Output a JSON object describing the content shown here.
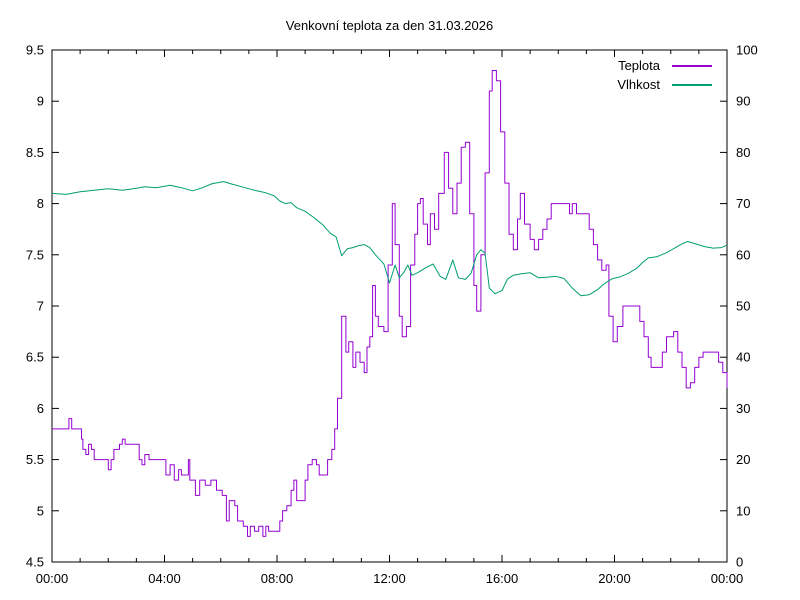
{
  "chart_data": {
    "type": "line",
    "title": "Venkovní teplota za den 31.03.2026",
    "grid": false,
    "x_axis": {
      "range_hours": [
        0,
        24
      ],
      "major_every_hours": 4,
      "minor_every_hours": 1,
      "tick_labels": [
        "00:00",
        "04:00",
        "08:00",
        "12:00",
        "16:00",
        "20:00",
        "00:00"
      ]
    },
    "y_left_axis": {
      "range": [
        4.5,
        9.5
      ],
      "tick_step": 0.5,
      "tick_labels": [
        "4.5",
        "5",
        "5.5",
        "6",
        "6.5",
        "7",
        "7.5",
        "8",
        "8.5",
        "9",
        "9.5"
      ]
    },
    "y_right_axis": {
      "range": [
        0,
        100
      ],
      "tick_step": 10,
      "tick_labels": [
        "0",
        "10",
        "20",
        "30",
        "40",
        "50",
        "60",
        "70",
        "80",
        "90",
        "100"
      ]
    },
    "legend": {
      "position": "top-right",
      "entries": [
        {
          "label": "Teplota",
          "color": "#9400d3"
        },
        {
          "label": "Vlhkost",
          "color": "#009e73"
        }
      ]
    },
    "series": [
      {
        "name": "Teplota",
        "axis": "left",
        "unit": "°C",
        "color": "#9400d3",
        "style": "steps",
        "points": [
          [
            0.0,
            5.8
          ],
          [
            0.55,
            5.8
          ],
          [
            0.6,
            5.9
          ],
          [
            0.7,
            5.8
          ],
          [
            1.0,
            5.8
          ],
          [
            1.05,
            5.7
          ],
          [
            1.1,
            5.6
          ],
          [
            1.2,
            5.55
          ],
          [
            1.3,
            5.65
          ],
          [
            1.4,
            5.6
          ],
          [
            1.5,
            5.5
          ],
          [
            1.9,
            5.5
          ],
          [
            2.0,
            5.4
          ],
          [
            2.1,
            5.5
          ],
          [
            2.2,
            5.6
          ],
          [
            2.4,
            5.65
          ],
          [
            2.5,
            5.7
          ],
          [
            2.6,
            5.65
          ],
          [
            3.0,
            5.65
          ],
          [
            3.1,
            5.5
          ],
          [
            3.2,
            5.45
          ],
          [
            3.3,
            5.55
          ],
          [
            3.45,
            5.5
          ],
          [
            3.95,
            5.5
          ],
          [
            4.05,
            5.35
          ],
          [
            4.2,
            5.45
          ],
          [
            4.35,
            5.3
          ],
          [
            4.5,
            5.4
          ],
          [
            4.6,
            5.35
          ],
          [
            4.8,
            5.35
          ],
          [
            4.85,
            5.5
          ],
          [
            4.9,
            5.3
          ],
          [
            5.1,
            5.15
          ],
          [
            5.25,
            5.3
          ],
          [
            5.45,
            5.25
          ],
          [
            5.65,
            5.3
          ],
          [
            5.85,
            5.2
          ],
          [
            6.05,
            5.15
          ],
          [
            6.2,
            4.9
          ],
          [
            6.3,
            5.1
          ],
          [
            6.5,
            5.05
          ],
          [
            6.6,
            4.9
          ],
          [
            6.8,
            4.85
          ],
          [
            6.95,
            4.75
          ],
          [
            7.05,
            4.85
          ],
          [
            7.2,
            4.8
          ],
          [
            7.35,
            4.85
          ],
          [
            7.5,
            4.75
          ],
          [
            7.6,
            4.85
          ],
          [
            7.7,
            4.8
          ],
          [
            8.0,
            4.8
          ],
          [
            8.1,
            4.9
          ],
          [
            8.2,
            5.0
          ],
          [
            8.35,
            5.05
          ],
          [
            8.5,
            5.2
          ],
          [
            8.6,
            5.3
          ],
          [
            8.7,
            5.1
          ],
          [
            8.9,
            5.1
          ],
          [
            9.0,
            5.3
          ],
          [
            9.1,
            5.45
          ],
          [
            9.25,
            5.5
          ],
          [
            9.4,
            5.45
          ],
          [
            9.5,
            5.35
          ],
          [
            9.7,
            5.35
          ],
          [
            9.8,
            5.5
          ],
          [
            9.95,
            5.6
          ],
          [
            10.05,
            5.8
          ],
          [
            10.15,
            6.1
          ],
          [
            10.3,
            6.9
          ],
          [
            10.45,
            6.55
          ],
          [
            10.55,
            6.65
          ],
          [
            10.7,
            6.4
          ],
          [
            10.8,
            6.55
          ],
          [
            10.95,
            6.45
          ],
          [
            11.1,
            6.35
          ],
          [
            11.2,
            6.6
          ],
          [
            11.3,
            6.7
          ],
          [
            11.4,
            7.2
          ],
          [
            11.5,
            6.9
          ],
          [
            11.6,
            6.8
          ],
          [
            11.8,
            6.75
          ],
          [
            11.95,
            7.4
          ],
          [
            12.1,
            8.0
          ],
          [
            12.2,
            7.6
          ],
          [
            12.35,
            6.9
          ],
          [
            12.45,
            6.7
          ],
          [
            12.6,
            6.8
          ],
          [
            12.75,
            7.4
          ],
          [
            12.9,
            7.7
          ],
          [
            13.0,
            8.0
          ],
          [
            13.1,
            8.05
          ],
          [
            13.2,
            7.8
          ],
          [
            13.35,
            7.6
          ],
          [
            13.45,
            7.9
          ],
          [
            13.6,
            7.75
          ],
          [
            13.75,
            8.1
          ],
          [
            13.95,
            8.5
          ],
          [
            14.1,
            8.15
          ],
          [
            14.25,
            7.9
          ],
          [
            14.4,
            8.2
          ],
          [
            14.55,
            8.55
          ],
          [
            14.7,
            8.6
          ],
          [
            14.85,
            7.9
          ],
          [
            15.0,
            7.2
          ],
          [
            15.1,
            6.95
          ],
          [
            15.25,
            7.5
          ],
          [
            15.4,
            8.3
          ],
          [
            15.55,
            9.1
          ],
          [
            15.65,
            9.3
          ],
          [
            15.8,
            9.2
          ],
          [
            15.95,
            8.7
          ],
          [
            16.1,
            8.2
          ],
          [
            16.25,
            7.7
          ],
          [
            16.4,
            7.55
          ],
          [
            16.55,
            7.85
          ],
          [
            16.65,
            8.1
          ],
          [
            16.8,
            7.8
          ],
          [
            17.0,
            7.65
          ],
          [
            17.15,
            7.55
          ],
          [
            17.3,
            7.65
          ],
          [
            17.45,
            7.75
          ],
          [
            17.6,
            7.85
          ],
          [
            17.75,
            8.0
          ],
          [
            18.3,
            8.0
          ],
          [
            18.4,
            7.9
          ],
          [
            18.5,
            8.0
          ],
          [
            18.65,
            7.9
          ],
          [
            19.0,
            7.9
          ],
          [
            19.1,
            7.75
          ],
          [
            19.25,
            7.6
          ],
          [
            19.4,
            7.45
          ],
          [
            19.55,
            7.35
          ],
          [
            19.7,
            7.4
          ],
          [
            19.8,
            6.9
          ],
          [
            19.95,
            6.65
          ],
          [
            20.1,
            6.8
          ],
          [
            20.3,
            7.0
          ],
          [
            20.75,
            7.0
          ],
          [
            20.9,
            6.85
          ],
          [
            21.05,
            6.7
          ],
          [
            21.2,
            6.5
          ],
          [
            21.3,
            6.4
          ],
          [
            21.55,
            6.4
          ],
          [
            21.7,
            6.55
          ],
          [
            21.85,
            6.7
          ],
          [
            22.1,
            6.75
          ],
          [
            22.25,
            6.55
          ],
          [
            22.4,
            6.4
          ],
          [
            22.55,
            6.2
          ],
          [
            22.7,
            6.25
          ],
          [
            22.85,
            6.4
          ],
          [
            23.0,
            6.5
          ],
          [
            23.15,
            6.55
          ],
          [
            23.55,
            6.55
          ],
          [
            23.7,
            6.45
          ],
          [
            23.85,
            6.35
          ],
          [
            24.0,
            6.2
          ]
        ]
      },
      {
        "name": "Vlhkost",
        "axis": "right",
        "unit": "%",
        "color": "#009e73",
        "style": "line",
        "points": [
          [
            0.0,
            72.0
          ],
          [
            0.5,
            71.8
          ],
          [
            1.0,
            72.3
          ],
          [
            1.5,
            72.6
          ],
          [
            2.0,
            72.9
          ],
          [
            2.5,
            72.6
          ],
          [
            3.0,
            73.0
          ],
          [
            3.3,
            73.3
          ],
          [
            3.7,
            73.1
          ],
          [
            4.2,
            73.6
          ],
          [
            4.6,
            73.1
          ],
          [
            5.0,
            72.5
          ],
          [
            5.3,
            73.0
          ],
          [
            5.7,
            73.9
          ],
          [
            6.1,
            74.3
          ],
          [
            6.4,
            73.8
          ],
          [
            6.8,
            73.2
          ],
          [
            7.2,
            72.6
          ],
          [
            7.6,
            72.1
          ],
          [
            7.9,
            71.5
          ],
          [
            8.1,
            70.5
          ],
          [
            8.3,
            70.0
          ],
          [
            8.5,
            70.2
          ],
          [
            8.7,
            69.2
          ],
          [
            9.0,
            68.5
          ],
          [
            9.3,
            67.3
          ],
          [
            9.6,
            66.0
          ],
          [
            9.9,
            64.2
          ],
          [
            10.1,
            63.5
          ],
          [
            10.3,
            59.8
          ],
          [
            10.5,
            61.2
          ],
          [
            10.7,
            61.4
          ],
          [
            10.9,
            61.8
          ],
          [
            11.1,
            62.0
          ],
          [
            11.3,
            61.4
          ],
          [
            11.5,
            60.0
          ],
          [
            11.8,
            58.2
          ],
          [
            12.0,
            54.5
          ],
          [
            12.2,
            58.0
          ],
          [
            12.35,
            55.5
          ],
          [
            12.5,
            56.5
          ],
          [
            12.65,
            58.0
          ],
          [
            12.8,
            56.0
          ],
          [
            13.0,
            56.5
          ],
          [
            13.3,
            57.5
          ],
          [
            13.55,
            58.2
          ],
          [
            13.8,
            55.8
          ],
          [
            14.0,
            55.2
          ],
          [
            14.25,
            59.0
          ],
          [
            14.45,
            55.5
          ],
          [
            14.7,
            55.2
          ],
          [
            14.9,
            56.4
          ],
          [
            15.1,
            60.0
          ],
          [
            15.25,
            61.0
          ],
          [
            15.4,
            60.3
          ],
          [
            15.55,
            53.5
          ],
          [
            15.75,
            52.4
          ],
          [
            16.0,
            53.0
          ],
          [
            16.2,
            55.3
          ],
          [
            16.4,
            56.0
          ],
          [
            16.7,
            56.3
          ],
          [
            17.0,
            56.5
          ],
          [
            17.3,
            55.5
          ],
          [
            17.6,
            55.6
          ],
          [
            17.9,
            55.8
          ],
          [
            18.2,
            55.4
          ],
          [
            18.5,
            53.5
          ],
          [
            18.8,
            52.0
          ],
          [
            19.1,
            52.2
          ],
          [
            19.4,
            53.2
          ],
          [
            19.6,
            54.2
          ],
          [
            19.9,
            55.3
          ],
          [
            20.2,
            55.7
          ],
          [
            20.5,
            56.4
          ],
          [
            20.8,
            57.4
          ],
          [
            21.0,
            58.5
          ],
          [
            21.2,
            59.4
          ],
          [
            21.5,
            59.6
          ],
          [
            21.8,
            60.3
          ],
          [
            22.1,
            61.2
          ],
          [
            22.35,
            62.0
          ],
          [
            22.6,
            62.6
          ],
          [
            22.9,
            62.1
          ],
          [
            23.2,
            61.6
          ],
          [
            23.5,
            61.3
          ],
          [
            23.8,
            61.4
          ],
          [
            24.0,
            61.9
          ]
        ]
      }
    ]
  }
}
